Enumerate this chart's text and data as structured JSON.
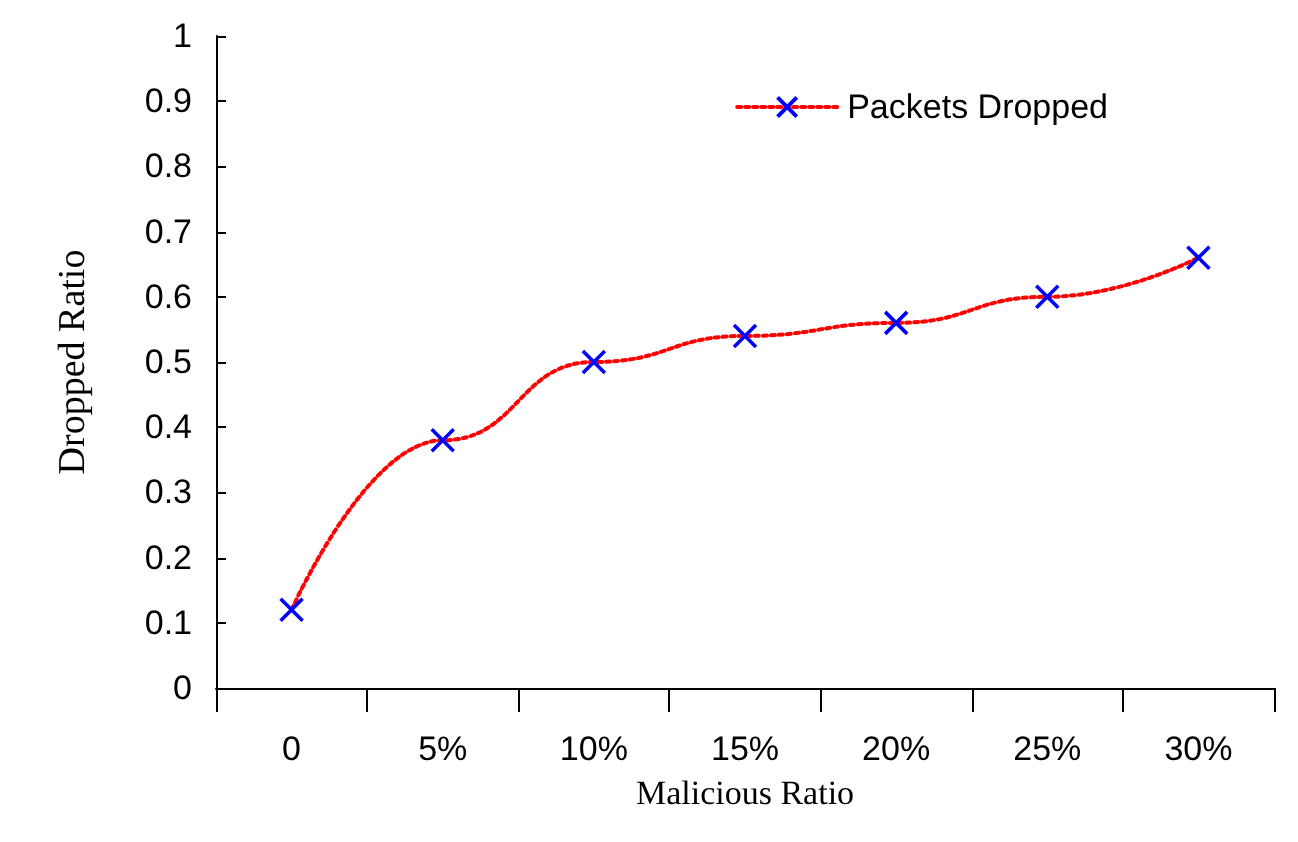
{
  "chart_data": {
    "type": "line",
    "xlabel": "Malicious Ratio",
    "ylabel": "Dropped Ratio",
    "categories": [
      "0",
      "5%",
      "10%",
      "15%",
      "20%",
      "25%",
      "30%"
    ],
    "series": [
      {
        "name": "Packets Dropped",
        "color": "#ff0000",
        "colors": [
          "#0000ff",
          "#0000ff",
          "#0000ff",
          "#0000ff",
          "#0000ff",
          "#0000ff",
          "#0000ff"
        ],
        "values": [
          0.12,
          0.38,
          0.5,
          0.54,
          0.56,
          0.6,
          0.66
        ]
      }
    ],
    "ylim": [
      0,
      1
    ],
    "yticks": [
      0,
      0.1,
      0.2,
      0.3,
      0.4,
      0.5,
      0.6,
      0.7,
      0.8,
      0.9,
      1
    ],
    "grid": false,
    "legend": "top right",
    "marker": "cross",
    "line_style": "dotted"
  }
}
